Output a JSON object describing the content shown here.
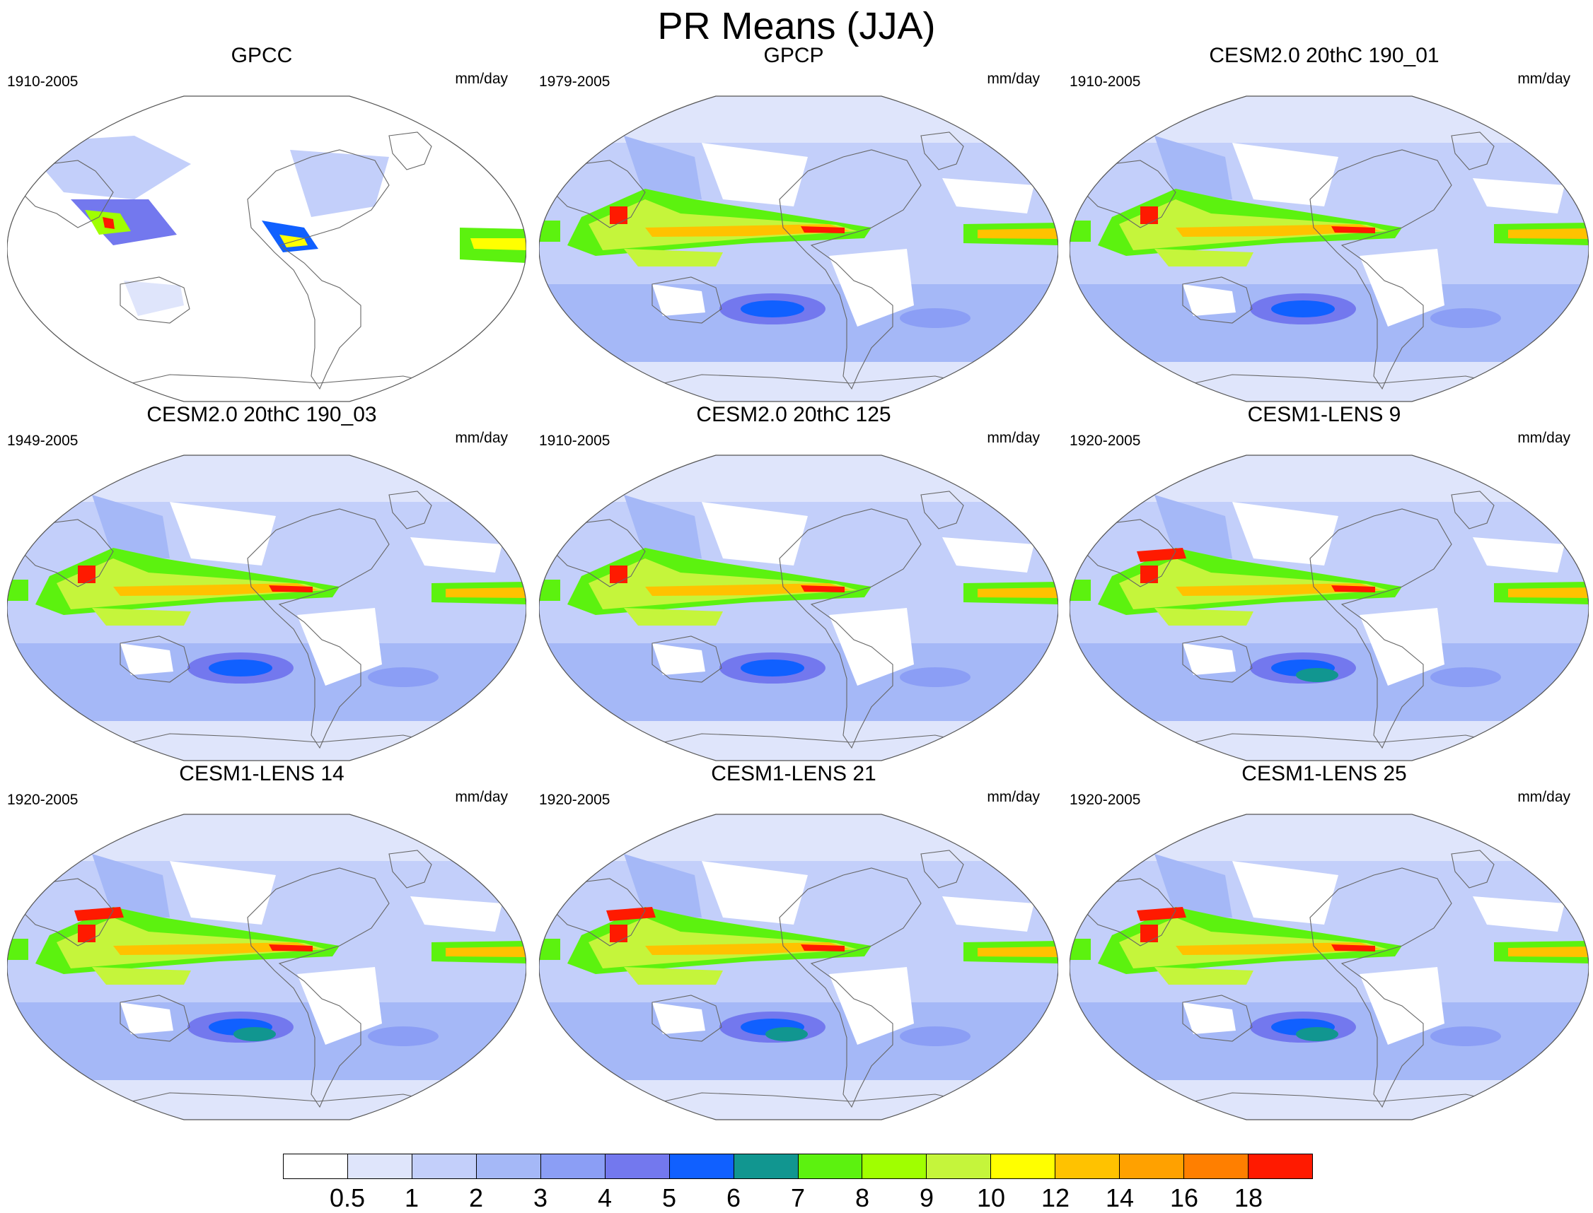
{
  "title": "PR Means (JJA)",
  "units": "mm/day",
  "panels": [
    {
      "name": "GPCC",
      "period": "1910-2005",
      "kind": "obs_land"
    },
    {
      "name": "GPCP",
      "period": "1979-2005",
      "kind": "obs"
    },
    {
      "name": "CESM2.0 20thC 190_01",
      "period": "1910-2005",
      "kind": "cesm2"
    },
    {
      "name": "CESM2.0 20thC 190_03",
      "period": "1949-2005",
      "kind": "cesm2"
    },
    {
      "name": "CESM2.0 20thC 125",
      "period": "1910-2005",
      "kind": "cesm2"
    },
    {
      "name": "CESM1-LENS 9",
      "period": "1920-2005",
      "kind": "cesm1"
    },
    {
      "name": "CESM1-LENS 14",
      "period": "1920-2005",
      "kind": "cesm1"
    },
    {
      "name": "CESM1-LENS 21",
      "period": "1920-2005",
      "kind": "cesm1"
    },
    {
      "name": "CESM1-LENS 25",
      "period": "1920-2005",
      "kind": "cesm1"
    }
  ],
  "colorbar": {
    "levels": [
      "0.5",
      "1",
      "2",
      "3",
      "4",
      "5",
      "6",
      "7",
      "8",
      "9",
      "10",
      "12",
      "14",
      "16",
      "18"
    ],
    "colors": [
      "#ffffff",
      "#dfe5fb",
      "#c3cffa",
      "#a5b8f7",
      "#8b9ef5",
      "#7378ee",
      "#1060ff",
      "#119690",
      "#5cf20f",
      "#a0ff00",
      "#c5f53b",
      "#ffff00",
      "#ffc200",
      "#ffa100",
      "#ff7f00",
      "#ff1a00"
    ]
  }
}
